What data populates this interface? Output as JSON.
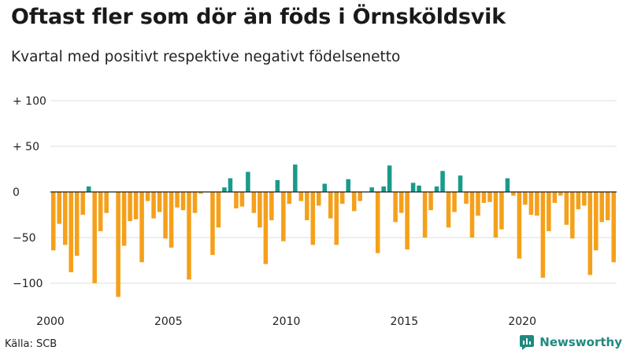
{
  "chart_data": {
    "type": "bar",
    "title": "Oftast fler som dör än föds i Örnsköldsvik",
    "subtitle": "Kvartal med positivt respektive negativt födelsenetto",
    "xlabel": "",
    "ylabel": "",
    "ylim": [
      -120,
      110
    ],
    "y_ticks": [
      {
        "value": 100,
        "label": "+ 100"
      },
      {
        "value": 50,
        "label": "+  50"
      },
      {
        "value": 0,
        "label": "0"
      },
      {
        "value": -50,
        "label": "−50"
      },
      {
        "value": -100,
        "label": "−100"
      }
    ],
    "x_ticks": [
      {
        "year": 2000,
        "label": "2000"
      },
      {
        "year": 2005,
        "label": "2005"
      },
      {
        "year": 2010,
        "label": "2010"
      },
      {
        "year": 2015,
        "label": "2015"
      },
      {
        "year": 2020,
        "label": "2020"
      }
    ],
    "start_year": 2000,
    "values": [
      -64,
      -35,
      -58,
      -88,
      -70,
      -25,
      6,
      -100,
      -43,
      -23,
      0,
      -115,
      -59,
      -32,
      -30,
      -77,
      -10,
      -29,
      -22,
      -51,
      -61,
      -17,
      -20,
      -96,
      -23,
      -2,
      0,
      -69,
      -39,
      5,
      15,
      -18,
      -16,
      22,
      -23,
      -39,
      -79,
      -31,
      13,
      -54,
      -13,
      30,
      -10,
      -31,
      -58,
      -15,
      9,
      -29,
      -58,
      -13,
      14,
      -21,
      -10,
      0,
      5,
      -67,
      6,
      29,
      -33,
      -23,
      -63,
      10,
      7,
      -50,
      -20,
      6,
      23,
      -39,
      -22,
      18,
      -13,
      -50,
      -26,
      -12,
      -11,
      -50,
      -41,
      15,
      -4,
      -73,
      -14,
      -25,
      -26,
      -94,
      -43,
      -12,
      -4,
      -36,
      -51,
      -19,
      -15,
      -91,
      -64,
      -33,
      -31,
      -77
    ],
    "colors": {
      "positive": "#1a9a8b",
      "negative": "#f5a01a"
    }
  },
  "footer": {
    "source": "Källa: SCB",
    "brand": "Newsworthy"
  },
  "colors": {
    "brand": "#1e8a7e",
    "grid": "#dddddd"
  }
}
